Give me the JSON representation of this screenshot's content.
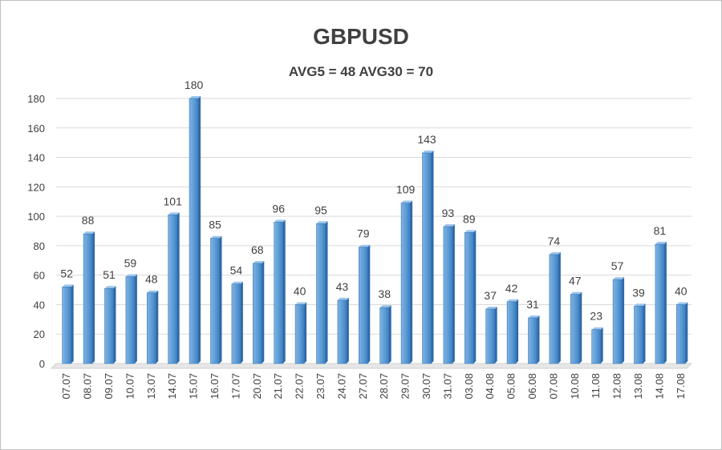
{
  "chart_data": {
    "type": "bar",
    "title": "GBPUSD",
    "subtitle": "AVG5 = 48 AVG30 = 70",
    "xlabel": "",
    "ylabel": "",
    "ylim": [
      0,
      180
    ],
    "yticks": [
      0,
      20,
      40,
      60,
      80,
      100,
      120,
      140,
      160,
      180
    ],
    "grid": true,
    "bar_color": "#5b9bd5",
    "categories": [
      "07.07",
      "08.07",
      "09.07",
      "10.07",
      "13.07",
      "14.07",
      "15.07",
      "16.07",
      "17.07",
      "20.07",
      "21.07",
      "22.07",
      "23.07",
      "24.07",
      "27.07",
      "28.07",
      "29.07",
      "30.07",
      "31.07",
      "03.08",
      "04.08",
      "05.08",
      "06.08",
      "07.08",
      "10.08",
      "11.08",
      "12.08",
      "13.08",
      "14.08",
      "17.08"
    ],
    "values": [
      52,
      88,
      51,
      59,
      48,
      101,
      180,
      85,
      54,
      68,
      96,
      40,
      95,
      43,
      79,
      38,
      109,
      143,
      93,
      89,
      37,
      42,
      31,
      74,
      47,
      23,
      57,
      39,
      81,
      40
    ]
  }
}
